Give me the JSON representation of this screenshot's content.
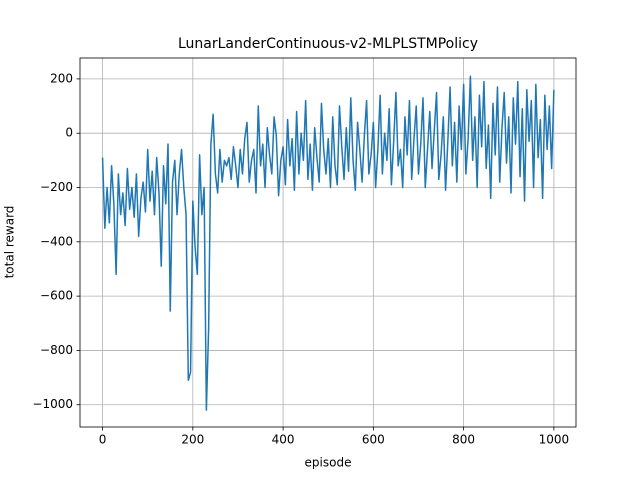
{
  "chart_data": {
    "type": "line",
    "title": "LunarLanderContinuous-v2-MLPLSTMPolicy",
    "xlabel": "episode",
    "ylabel": "total reward",
    "color": "#1f77b4",
    "grid": true,
    "xlim": [
      -50,
      1049
    ],
    "ylim": [
      -1082,
      277
    ],
    "xticks": [
      0,
      200,
      400,
      600,
      800,
      1000
    ],
    "yticks": [
      {
        "value": -1000,
        "label": "−1000"
      },
      {
        "value": -800,
        "label": "−800"
      },
      {
        "value": -600,
        "label": "−600"
      },
      {
        "value": -400,
        "label": "−400"
      },
      {
        "value": -200,
        "label": "−200"
      },
      0,
      200
    ],
    "x": [
      0,
      5,
      10,
      15,
      20,
      25,
      30,
      35,
      40,
      45,
      50,
      55,
      60,
      65,
      70,
      75,
      80,
      85,
      90,
      95,
      100,
      105,
      110,
      115,
      120,
      125,
      130,
      135,
      140,
      145,
      150,
      155,
      160,
      165,
      170,
      175,
      180,
      185,
      190,
      195,
      200,
      205,
      210,
      215,
      220,
      225,
      230,
      235,
      240,
      245,
      250,
      255,
      260,
      265,
      270,
      275,
      280,
      285,
      290,
      295,
      300,
      305,
      310,
      315,
      320,
      325,
      330,
      335,
      340,
      345,
      350,
      355,
      360,
      365,
      370,
      375,
      380,
      385,
      390,
      395,
      400,
      405,
      410,
      415,
      420,
      425,
      430,
      435,
      440,
      445,
      450,
      455,
      460,
      465,
      470,
      475,
      480,
      485,
      490,
      495,
      500,
      505,
      510,
      515,
      520,
      525,
      530,
      535,
      540,
      545,
      550,
      555,
      560,
      565,
      570,
      575,
      580,
      585,
      590,
      595,
      600,
      605,
      610,
      615,
      620,
      625,
      630,
      635,
      640,
      645,
      650,
      655,
      660,
      665,
      670,
      675,
      680,
      685,
      690,
      695,
      700,
      705,
      710,
      715,
      720,
      725,
      730,
      735,
      740,
      745,
      750,
      755,
      760,
      765,
      770,
      775,
      780,
      785,
      790,
      795,
      800,
      805,
      810,
      815,
      820,
      825,
      830,
      835,
      840,
      845,
      850,
      855,
      860,
      865,
      870,
      875,
      880,
      885,
      890,
      895,
      900,
      905,
      910,
      915,
      920,
      925,
      930,
      935,
      940,
      945,
      950,
      955,
      960,
      965,
      970,
      975,
      980,
      985,
      990,
      995,
      1000
    ],
    "values": [
      -90,
      -350,
      -200,
      -330,
      -120,
      -260,
      -520,
      -150,
      -300,
      -220,
      -340,
      -130,
      -280,
      -200,
      -310,
      -150,
      -380,
      -240,
      -180,
      -290,
      -60,
      -250,
      -140,
      -300,
      -90,
      -220,
      -490,
      -120,
      -260,
      -40,
      -655,
      -180,
      -100,
      -300,
      -150,
      -60,
      -200,
      -300,
      -910,
      -880,
      -250,
      -420,
      -520,
      -80,
      -300,
      -200,
      -1020,
      -720,
      -40,
      70,
      -150,
      -220,
      -60,
      -180,
      -100,
      -120,
      -90,
      -170,
      -50,
      -120,
      -200,
      -60,
      -150,
      -20,
      40,
      -180,
      -100,
      -60,
      -220,
      100,
      -120,
      -40,
      -200,
      20,
      -80,
      -150,
      60,
      -10,
      -230,
      -100,
      -50,
      -190,
      50,
      -120,
      -20,
      -210,
      80,
      -150,
      0,
      -100,
      120,
      -170,
      -40,
      -210,
      20,
      -90,
      -180,
      110,
      -60,
      -150,
      -20,
      -200,
      60,
      -120,
      -190,
      100,
      -50,
      -170,
      20,
      -140,
      130,
      -100,
      -210,
      40,
      -60,
      -180,
      -10,
      120,
      -150,
      -80,
      40,
      -200,
      -60,
      140,
      -150,
      0,
      -100,
      90,
      -190,
      -30,
      150,
      -120,
      -60,
      -200,
      60,
      -80,
      120,
      -170,
      -20,
      100,
      -150,
      -40,
      130,
      -200,
      -60,
      80,
      -130,
      10,
      150,
      -170,
      -80,
      60,
      -210,
      -30,
      170,
      -120,
      40,
      -180,
      100,
      -60,
      180,
      -150,
      -20,
      210,
      -100,
      60,
      -200,
      140,
      -50,
      190,
      -130,
      30,
      -240,
      110,
      -80,
      170,
      -180,
      20,
      150,
      -110,
      60,
      -220,
      130,
      -40,
      190,
      -160,
      90,
      -250,
      160,
      -30,
      120,
      -200,
      180,
      -90,
      50,
      -240,
      140,
      -60,
      100,
      -130,
      160
    ]
  }
}
